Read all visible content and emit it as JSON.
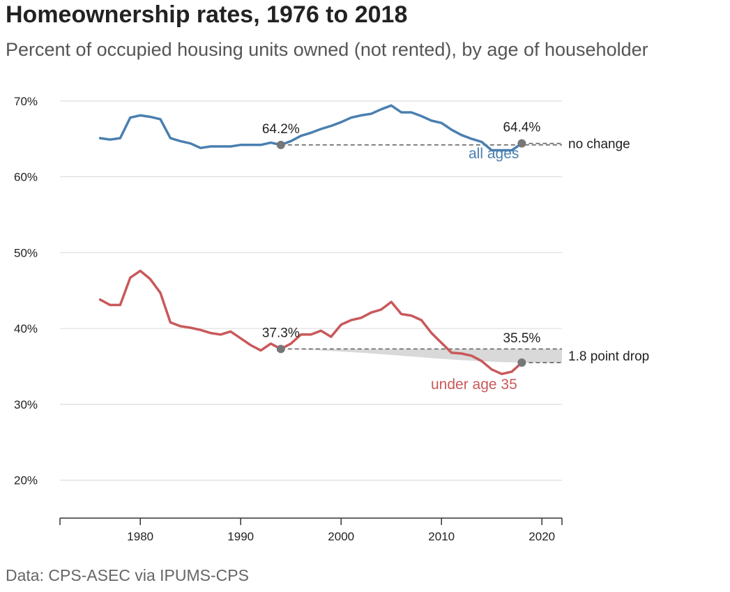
{
  "chart_data": {
    "type": "line",
    "title": "Homeownership rates, 1976 to 2018",
    "subtitle": "Percent of occupied housing units owned (not rented), by age of householder",
    "source": "Data: CPS-ASEC via IPUMS-CPS",
    "xlim": [
      1972,
      2022
    ],
    "ylim": [
      15,
      72
    ],
    "x_ticks": [
      1980,
      1990,
      2000,
      2010,
      2020
    ],
    "y_ticks": [
      20,
      30,
      40,
      50,
      60,
      70
    ],
    "y_tick_labels": [
      "20%",
      "30%",
      "40%",
      "50%",
      "60%",
      "70%"
    ],
    "grid": true,
    "x": [
      1976,
      1977,
      1978,
      1979,
      1980,
      1981,
      1982,
      1983,
      1984,
      1985,
      1986,
      1987,
      1988,
      1989,
      1990,
      1991,
      1992,
      1993,
      1994,
      1995,
      1996,
      1997,
      1998,
      1999,
      2000,
      2001,
      2002,
      2003,
      2004,
      2005,
      2006,
      2007,
      2008,
      2009,
      2010,
      2011,
      2012,
      2013,
      2014,
      2015,
      2016,
      2017,
      2018
    ],
    "series": [
      {
        "name": "all ages",
        "color": "#4a7fb0",
        "values": [
          65.1,
          64.9,
          65.1,
          67.8,
          68.1,
          67.9,
          67.6,
          65.1,
          64.7,
          64.4,
          63.8,
          64.0,
          64.0,
          64.0,
          64.2,
          64.2,
          64.2,
          64.5,
          64.2,
          64.7,
          65.4,
          65.8,
          66.3,
          66.7,
          67.2,
          67.8,
          68.1,
          68.3,
          68.9,
          69.4,
          68.5,
          68.5,
          68.0,
          67.4,
          67.1,
          66.2,
          65.5,
          65.0,
          64.6,
          63.5,
          63.5,
          63.5,
          64.4
        ]
      },
      {
        "name": "under age 35",
        "color": "#c9585a",
        "values": [
          43.8,
          43.1,
          43.1,
          46.7,
          47.6,
          46.5,
          44.7,
          40.8,
          40.3,
          40.1,
          39.8,
          39.4,
          39.2,
          39.6,
          38.7,
          37.8,
          37.1,
          38.0,
          37.3,
          38.0,
          39.2,
          39.2,
          39.7,
          38.9,
          40.5,
          41.1,
          41.4,
          42.1,
          42.5,
          43.5,
          41.9,
          41.7,
          41.1,
          39.4,
          38.1,
          36.8,
          36.7,
          36.4,
          35.7,
          34.6,
          34.0,
          34.3,
          35.5
        ]
      }
    ],
    "annotations": [
      {
        "series": 0,
        "x": 1994,
        "label": "64.2%"
      },
      {
        "series": 0,
        "x": 2018,
        "label": "64.4%",
        "note": "no change"
      },
      {
        "series": 1,
        "x": 1994,
        "label": "37.3%"
      },
      {
        "series": 1,
        "x": 2018,
        "label": "35.5%",
        "note": "1.8 point drop"
      }
    ],
    "colors": {
      "marker": "#777777",
      "gap_fill": "#d9d9d9",
      "grid": "#dddddd",
      "axis": "#333333"
    }
  }
}
